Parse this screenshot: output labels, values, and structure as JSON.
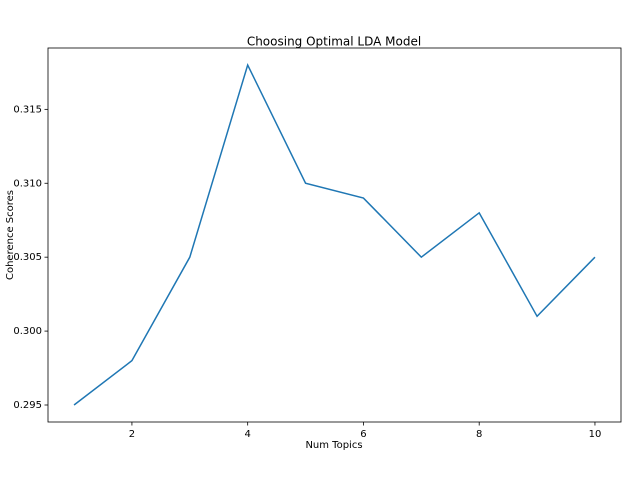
{
  "chart_data": {
    "type": "line",
    "title": "Choosing Optimal LDA Model",
    "x_label": "Num Topics",
    "y_label": "Coherence Scores",
    "x": [
      1,
      2,
      3,
      4,
      5,
      6,
      7,
      8,
      9,
      10
    ],
    "series": [
      {
        "name": "Coherence",
        "color": "#1f77b4",
        "values": [
          0.295,
          0.298,
          0.305,
          0.318,
          0.31,
          0.309,
          0.305,
          0.308,
          0.301,
          0.305
        ]
      }
    ],
    "xlim": [
      0.55,
      10.45
    ],
    "ylim": [
      0.29385,
      0.31915
    ],
    "xticks": [
      2,
      4,
      6,
      8,
      10
    ],
    "yticks": [
      0.295,
      {
        "value": 0.3,
        "label": "0.300"
      },
      0.305,
      {
        "value": 0.31,
        "label": "0.310"
      },
      0.315
    ]
  }
}
